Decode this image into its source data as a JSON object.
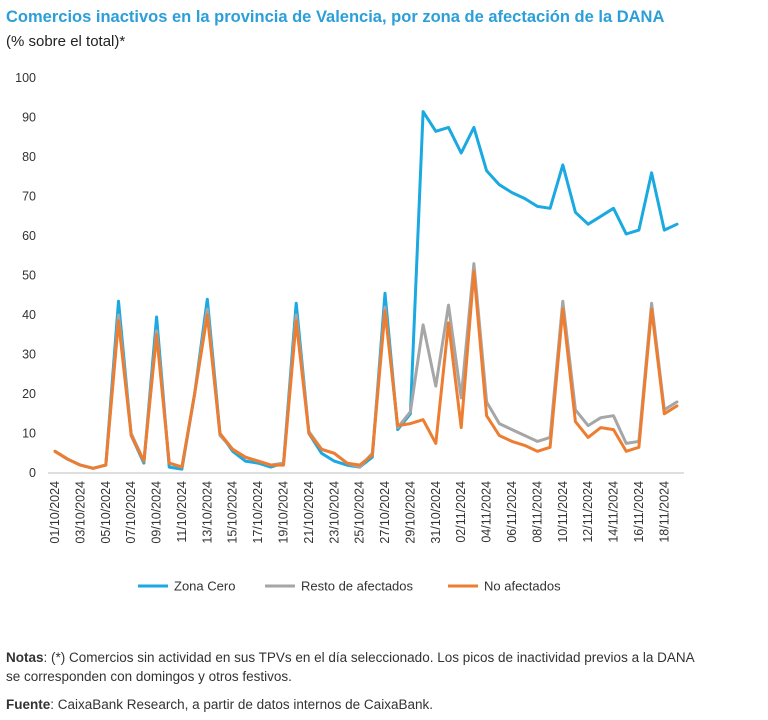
{
  "header": {
    "title": "Comercios inactivos en la provincia de Valencia, por zona de afectación de la DANA",
    "subtitle": "(% sobre el total)*"
  },
  "footer": {
    "notes_label": "Notas",
    "notes_text": ": (*) Comercios sin actividad en sus TPVs en el día seleccionado. Los picos de inactividad previos a la DANA se corresponden con domingos y otros festivos.",
    "source_label": "Fuente",
    "source_text": ": CaixaBank Research, a partir de datos internos de CaixaBank."
  },
  "chart_data": {
    "type": "line",
    "ylim": [
      0,
      100
    ],
    "yticks": [
      0,
      10,
      20,
      30,
      40,
      50,
      60,
      70,
      80,
      90,
      100
    ],
    "grid": false,
    "legend_position": "bottom",
    "categories": [
      "01/10/2024",
      "02/10/2024",
      "03/10/2024",
      "04/10/2024",
      "05/10/2024",
      "06/10/2024",
      "07/10/2024",
      "08/10/2024",
      "09/10/2024",
      "10/10/2024",
      "11/10/2024",
      "12/10/2024",
      "13/10/2024",
      "14/10/2024",
      "15/10/2024",
      "16/10/2024",
      "17/10/2024",
      "18/10/2024",
      "19/10/2024",
      "20/10/2024",
      "21/10/2024",
      "22/10/2024",
      "23/10/2024",
      "24/10/2024",
      "25/10/2024",
      "26/10/2024",
      "27/10/2024",
      "28/10/2024",
      "29/10/2024",
      "30/10/2024",
      "31/10/2024",
      "01/11/2024",
      "02/11/2024",
      "03/11/2024",
      "04/11/2024",
      "05/11/2024",
      "06/11/2024",
      "07/11/2024",
      "08/11/2024",
      "09/11/2024",
      "10/11/2024",
      "11/11/2024",
      "12/11/2024",
      "13/11/2024",
      "14/11/2024",
      "15/11/2024",
      "16/11/2024",
      "17/11/2024",
      "18/11/2024",
      "19/11/2024"
    ],
    "x_tick_labels": [
      "01/10/2024",
      "03/10/2024",
      "05/10/2024",
      "07/10/2024",
      "09/10/2024",
      "11/10/2024",
      "13/10/2024",
      "15/10/2024",
      "17/10/2024",
      "19/10/2024",
      "21/10/2024",
      "23/10/2024",
      "25/10/2024",
      "27/10/2024",
      "29/10/2024",
      "31/10/2024",
      "02/11/2024",
      "04/11/2024",
      "06/11/2024",
      "08/11/2024",
      "10/11/2024",
      "12/11/2024",
      "14/11/2024",
      "16/11/2024",
      "18/11/2024"
    ],
    "series": [
      {
        "name": "Zona Cero",
        "color": "#1aa9e0",
        "values": [
          5.5,
          3.5,
          2.0,
          1.2,
          2.0,
          43.5,
          9.5,
          2.5,
          39.5,
          1.5,
          1.0,
          20.0,
          44.0,
          10.0,
          5.5,
          3.0,
          2.5,
          1.5,
          2.5,
          43.0,
          10.0,
          5.0,
          3.0,
          2.0,
          1.5,
          4.0,
          45.5,
          11.0,
          15.0,
          91.5,
          86.5,
          87.5,
          81.0,
          87.5,
          76.5,
          73.0,
          71.0,
          69.5,
          67.5,
          67.0,
          78.0,
          66.0,
          63.0,
          65.0,
          67.0,
          60.5,
          61.5,
          76.0,
          61.5,
          63.0
        ]
      },
      {
        "name": "Resto de afectados",
        "color": "#a6a6a6",
        "values": [
          5.5,
          3.5,
          2.0,
          1.2,
          2.0,
          40.0,
          10.0,
          3.0,
          36.0,
          2.5,
          1.5,
          20.0,
          41.5,
          9.5,
          6.0,
          4.0,
          3.0,
          2.0,
          2.5,
          40.0,
          10.5,
          6.0,
          5.0,
          2.5,
          1.5,
          5.0,
          42.0,
          11.5,
          15.5,
          37.5,
          22.0,
          42.5,
          19.0,
          53.0,
          18.0,
          12.5,
          11.0,
          9.5,
          8.0,
          9.0,
          43.5,
          16.0,
          12.0,
          14.0,
          14.5,
          7.5,
          8.0,
          43.0,
          16.0,
          18.0
        ]
      },
      {
        "name": "No afectados",
        "color": "#ed7d31",
        "values": [
          5.5,
          3.5,
          2.0,
          1.2,
          2.0,
          38.5,
          9.5,
          3.0,
          35.0,
          2.5,
          1.5,
          20.0,
          40.0,
          10.0,
          6.0,
          4.0,
          3.0,
          2.0,
          2.0,
          38.5,
          10.0,
          6.0,
          5.0,
          2.5,
          2.0,
          4.5,
          41.0,
          12.0,
          12.5,
          13.5,
          7.5,
          38.0,
          11.5,
          51.0,
          14.5,
          9.5,
          8.0,
          7.0,
          5.5,
          6.5,
          41.5,
          13.0,
          9.0,
          11.5,
          11.0,
          5.5,
          6.5,
          41.5,
          15.0,
          17.0
        ]
      }
    ]
  }
}
